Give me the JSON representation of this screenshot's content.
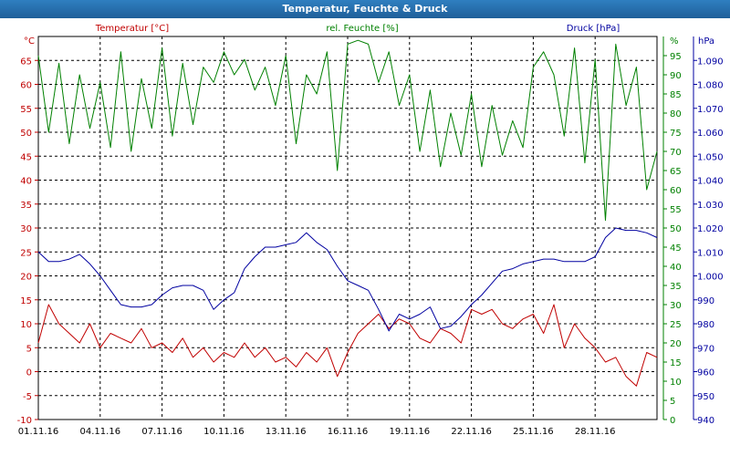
{
  "window": {
    "title": "Temperatur, Feuchte & Druck"
  },
  "colors": {
    "temperature": "#c00000",
    "humidity": "#008000",
    "pressure": "#0000a0",
    "grid": "#000000"
  },
  "chart_data": {
    "type": "line",
    "title": "Temperatur, Feuchte & Druck",
    "grid": true,
    "x_tick_labels": [
      "01.11.16",
      "04.11.16",
      "07.11.16",
      "10.11.16",
      "13.11.16",
      "16.11.16",
      "19.11.16",
      "22.11.16",
      "25.11.16",
      "28.11.16"
    ],
    "xlim": [
      "2016-11-01",
      "2016-12-01"
    ],
    "axes": {
      "temperature": {
        "label": "Temperatur [°C]",
        "unit": "°C",
        "side": "left",
        "ylim": [
          -10,
          70
        ],
        "ticks": [
          -10,
          -5,
          0,
          5,
          10,
          15,
          20,
          25,
          30,
          35,
          40,
          45,
          50,
          55,
          60,
          65
        ]
      },
      "humidity": {
        "label": "rel. Feuchte [%]",
        "unit": "%",
        "side": "right",
        "ylim": [
          0,
          100
        ],
        "ticks": [
          0,
          5,
          10,
          15,
          20,
          25,
          30,
          35,
          40,
          45,
          50,
          55,
          60,
          65,
          70,
          75,
          80,
          85,
          90,
          95
        ]
      },
      "pressure": {
        "label": "Druck [hPa]",
        "unit": "hPa",
        "side": "right",
        "ylim": [
          940,
          1100
        ],
        "ticks": [
          "940",
          "950",
          "960",
          "970",
          "980",
          "990",
          "1.000",
          "1.010",
          "1.020",
          "1.030",
          "1.040",
          "1.050",
          "1.060",
          "1.070",
          "1.080",
          "1.090"
        ],
        "tick_values": [
          940,
          950,
          960,
          970,
          980,
          990,
          1000,
          1010,
          1020,
          1030,
          1040,
          1050,
          1060,
          1070,
          1080,
          1090
        ]
      }
    },
    "series": [
      {
        "name": "Temperatur [°C]",
        "axis": "temperature",
        "x": [
          "2016-11-01",
          "2016-11-01 12:00",
          "2016-11-02",
          "2016-11-02 12:00",
          "2016-11-03",
          "2016-11-03 12:00",
          "2016-11-04",
          "2016-11-04 12:00",
          "2016-11-05",
          "2016-11-05 12:00",
          "2016-11-06",
          "2016-11-06 12:00",
          "2016-11-07",
          "2016-11-07 12:00",
          "2016-11-08",
          "2016-11-08 12:00",
          "2016-11-09",
          "2016-11-09 12:00",
          "2016-11-10",
          "2016-11-10 12:00",
          "2016-11-11",
          "2016-11-11 12:00",
          "2016-11-12",
          "2016-11-12 12:00",
          "2016-11-13",
          "2016-11-13 12:00",
          "2016-11-14",
          "2016-11-14 12:00",
          "2016-11-15",
          "2016-11-15 12:00",
          "2016-11-16",
          "2016-11-16 12:00",
          "2016-11-17",
          "2016-11-17 12:00",
          "2016-11-18",
          "2016-11-18 12:00",
          "2016-11-19",
          "2016-11-19 12:00",
          "2016-11-20",
          "2016-11-20 12:00",
          "2016-11-21",
          "2016-11-21 12:00",
          "2016-11-22",
          "2016-11-22 12:00",
          "2016-11-23",
          "2016-11-23 12:00",
          "2016-11-24",
          "2016-11-24 12:00",
          "2016-11-25",
          "2016-11-25 12:00",
          "2016-11-26",
          "2016-11-26 12:00",
          "2016-11-27",
          "2016-11-27 12:00",
          "2016-11-28",
          "2016-11-28 12:00",
          "2016-11-29",
          "2016-11-29 12:00",
          "2016-11-30",
          "2016-11-30 12:00",
          "2016-12-01"
        ],
        "values": [
          6,
          14,
          10,
          8,
          6,
          10,
          5,
          8,
          7,
          6,
          9,
          5,
          6,
          4,
          7,
          3,
          5,
          2,
          4,
          3,
          6,
          3,
          5,
          2,
          3,
          1,
          4,
          2,
          5,
          -1,
          4,
          8,
          10,
          12,
          9,
          11,
          10,
          7,
          6,
          9,
          8,
          6,
          13,
          12,
          13,
          10,
          9,
          11,
          12,
          8,
          14,
          5,
          10,
          7,
          5,
          2,
          3,
          -1,
          -3,
          4,
          3
        ]
      },
      {
        "name": "rel. Feuchte [%]",
        "axis": "humidity",
        "x": [
          "2016-11-01",
          "2016-11-01 12:00",
          "2016-11-02",
          "2016-11-02 12:00",
          "2016-11-03",
          "2016-11-03 12:00",
          "2016-11-04",
          "2016-11-04 12:00",
          "2016-11-05",
          "2016-11-05 12:00",
          "2016-11-06",
          "2016-11-06 12:00",
          "2016-11-07",
          "2016-11-07 12:00",
          "2016-11-08",
          "2016-11-08 12:00",
          "2016-11-09",
          "2016-11-09 12:00",
          "2016-11-10",
          "2016-11-10 12:00",
          "2016-11-11",
          "2016-11-11 12:00",
          "2016-11-12",
          "2016-11-12 12:00",
          "2016-11-13",
          "2016-11-13 12:00",
          "2016-11-14",
          "2016-11-14 12:00",
          "2016-11-15",
          "2016-11-15 12:00",
          "2016-11-16",
          "2016-11-16 12:00",
          "2016-11-17",
          "2016-11-17 12:00",
          "2016-11-18",
          "2016-11-18 12:00",
          "2016-11-19",
          "2016-11-19 12:00",
          "2016-11-20",
          "2016-11-20 12:00",
          "2016-11-21",
          "2016-11-21 12:00",
          "2016-11-22",
          "2016-11-22 12:00",
          "2016-11-23",
          "2016-11-23 12:00",
          "2016-11-24",
          "2016-11-24 12:00",
          "2016-11-25",
          "2016-11-25 12:00",
          "2016-11-26",
          "2016-11-26 12:00",
          "2016-11-27",
          "2016-11-27 12:00",
          "2016-11-28",
          "2016-11-28 12:00",
          "2016-11-29",
          "2016-11-29 12:00",
          "2016-11-30",
          "2016-11-30 12:00",
          "2016-12-01"
        ],
        "values": [
          95,
          75,
          93,
          72,
          90,
          76,
          88,
          71,
          96,
          70,
          89,
          76,
          97,
          74,
          93,
          77,
          92,
          88,
          96,
          90,
          94,
          86,
          92,
          82,
          95,
          72,
          90,
          85,
          96,
          65,
          98,
          99,
          98,
          88,
          96,
          82,
          90,
          70,
          86,
          66,
          80,
          69,
          85,
          66,
          82,
          69,
          78,
          71,
          92,
          96,
          90,
          74,
          97,
          67,
          94,
          52,
          98,
          82,
          92,
          60,
          70
        ]
      },
      {
        "name": "Druck [hPa]",
        "axis": "pressure",
        "x": [
          "2016-11-01",
          "2016-11-01 12:00",
          "2016-11-02",
          "2016-11-02 12:00",
          "2016-11-03",
          "2016-11-03 12:00",
          "2016-11-04",
          "2016-11-04 12:00",
          "2016-11-05",
          "2016-11-05 12:00",
          "2016-11-06",
          "2016-11-06 12:00",
          "2016-11-07",
          "2016-11-07 12:00",
          "2016-11-08",
          "2016-11-08 12:00",
          "2016-11-09",
          "2016-11-09 12:00",
          "2016-11-10",
          "2016-11-10 12:00",
          "2016-11-11",
          "2016-11-11 12:00",
          "2016-11-12",
          "2016-11-12 12:00",
          "2016-11-13",
          "2016-11-13 12:00",
          "2016-11-14",
          "2016-11-14 12:00",
          "2016-11-15",
          "2016-11-15 12:00",
          "2016-11-16",
          "2016-11-16 12:00",
          "2016-11-17",
          "2016-11-17 12:00",
          "2016-11-18",
          "2016-11-18 12:00",
          "2016-11-19",
          "2016-11-19 12:00",
          "2016-11-20",
          "2016-11-20 12:00",
          "2016-11-21",
          "2016-11-21 12:00",
          "2016-11-22",
          "2016-11-22 12:00",
          "2016-11-23",
          "2016-11-23 12:00",
          "2016-11-24",
          "2016-11-24 12:00",
          "2016-11-25",
          "2016-11-25 12:00",
          "2016-11-26",
          "2016-11-26 12:00",
          "2016-11-27",
          "2016-11-27 12:00",
          "2016-11-28",
          "2016-11-28 12:00",
          "2016-11-29",
          "2016-11-29 12:00",
          "2016-11-30",
          "2016-11-30 12:00",
          "2016-12-01"
        ],
        "values": [
          1010,
          1006,
          1006,
          1007,
          1009,
          1005,
          1000,
          994,
          988,
          987,
          987,
          988,
          992,
          995,
          996,
          996,
          994,
          986,
          990,
          993,
          1003,
          1008,
          1012,
          1012,
          1013,
          1014,
          1018,
          1014,
          1011,
          1004,
          998,
          996,
          994,
          986,
          977,
          984,
          982,
          984,
          987,
          978,
          979,
          983,
          988,
          992,
          997,
          1002,
          1003,
          1005,
          1006,
          1007,
          1007,
          1006,
          1006,
          1006,
          1008,
          1016,
          1020,
          1019,
          1019,
          1018,
          1016
        ]
      }
    ]
  }
}
